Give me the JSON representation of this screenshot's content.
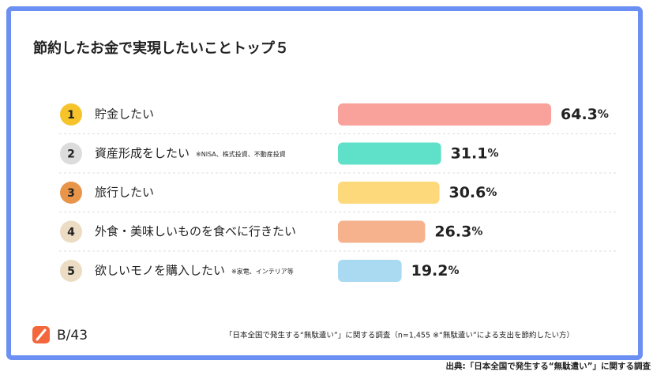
{
  "chart_data": {
    "type": "bar",
    "orientation": "horizontal",
    "title": "節約したお金で実現したいことトップ５",
    "ranks": [
      "1",
      "2",
      "3",
      "4",
      "5"
    ],
    "rank_colors": [
      "#f6c42a",
      "#dcdcdc",
      "#e8954a",
      "#ecdcc4",
      "#ecdcc4"
    ],
    "categories": [
      "貯金したい",
      "資産形成をしたい",
      "旅行したい",
      "外食・美味しいものを食べに行きたい",
      "欲しいモノを購入したい"
    ],
    "notes": [
      null,
      "※NISA、株式投資、不動産投資",
      null,
      null,
      "※家電、インテリア等"
    ],
    "values": [
      64.3,
      31.1,
      30.6,
      26.3,
      19.2
    ],
    "value_labels": [
      "64.3%",
      "31.1%",
      "30.6%",
      "26.3%",
      "19.2%"
    ],
    "colors": [
      "#f8a29b",
      "#5fe0c8",
      "#fed97b",
      "#f6b28c",
      "#a9daf2"
    ],
    "brand": "B/43",
    "survey_note": "「日本全国で発生する“無駄遣い”」に関する調査（n=1,455 ※“無駄遣い”による支出を節約したい方）",
    "source": "出典:「日本全国で発生する“無駄遣い”」に関する調査"
  }
}
